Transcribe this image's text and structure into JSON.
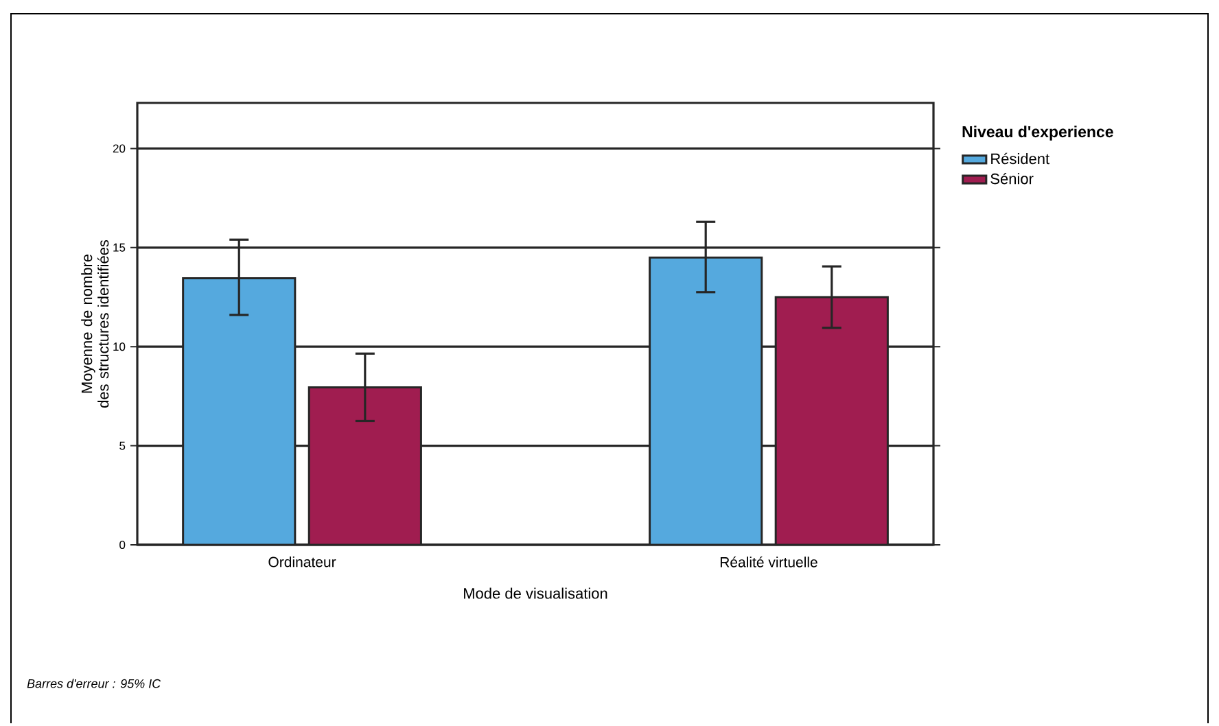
{
  "chart_data": {
    "type": "bar",
    "categories": [
      "Ordinateur",
      "Réalité virtuelle"
    ],
    "series": [
      {
        "name": "Résident",
        "color": "#55a9de",
        "values": [
          13.45,
          14.5
        ],
        "errors": [
          [
            11.6,
            15.4
          ],
          [
            12.75,
            16.3
          ]
        ]
      },
      {
        "name": "Sénior",
        "color": "#a01d50",
        "values": [
          7.95,
          12.5
        ],
        "errors": [
          [
            6.25,
            9.65
          ],
          [
            10.95,
            14.05
          ]
        ]
      }
    ],
    "xlabel": "Mode de visualisation",
    "ylabel": "Moyenne de nombre des structures identifiées",
    "legend_title": "Niveau d'experience",
    "annotations": [
      "Barres d'erreur : 95% IC"
    ],
    "ylim": [
      0,
      22.3
    ],
    "yticks": [
      0,
      5,
      10,
      15,
      20
    ],
    "grid": "y",
    "legend": "right"
  }
}
